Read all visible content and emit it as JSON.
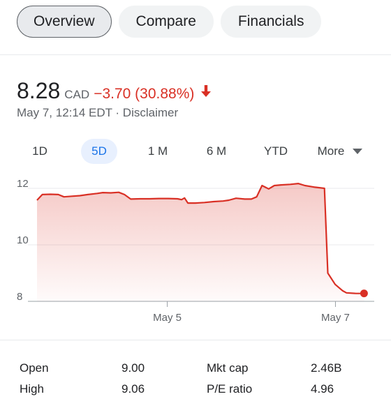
{
  "tabs": [
    {
      "label": "Overview",
      "active": true
    },
    {
      "label": "Compare",
      "active": false
    },
    {
      "label": "Financials",
      "active": false
    }
  ],
  "quote": {
    "price": "8.28",
    "currency": "CAD",
    "change": "−3.70 (30.88%)",
    "direction": "down",
    "timestamp": "May 7, 12:14 EDT · Disclaimer"
  },
  "ranges": [
    {
      "label": "1D",
      "active": false
    },
    {
      "label": "5D",
      "active": true
    },
    {
      "label": "1 M",
      "active": false
    },
    {
      "label": "6 M",
      "active": false
    },
    {
      "label": "YTD",
      "active": false
    },
    {
      "label": "More",
      "active": false
    }
  ],
  "colors": {
    "accent": "#1a73e8",
    "negative": "#d93025"
  },
  "chart_data": {
    "type": "area",
    "y_ticks": [
      12,
      10,
      8
    ],
    "ylim": [
      8,
      12.3
    ],
    "x_tick_labels": [
      {
        "label": "May 5",
        "t": 0.392
      },
      {
        "label": "May 7",
        "t": 0.898
      }
    ],
    "series": [
      {
        "values": [
          11.58,
          11.78,
          11.79,
          11.78,
          11.7,
          11.72,
          11.74,
          11.78,
          11.82,
          11.85,
          11.84,
          11.86,
          11.78,
          11.62,
          11.63,
          11.63,
          11.64,
          11.64,
          11.63,
          11.6,
          11.66,
          11.48,
          11.48,
          11.5,
          11.53,
          11.55,
          11.58,
          11.65,
          11.62,
          11.62,
          11.7,
          12.1,
          11.98,
          12.1,
          12.12,
          12.14,
          12.17,
          12.1,
          12.04,
          12.0,
          9.0,
          8.6,
          8.38,
          8.3,
          8.28,
          8.28
        ],
        "t": [
          0.0,
          0.016,
          0.04,
          0.064,
          0.081,
          0.105,
          0.129,
          0.153,
          0.181,
          0.198,
          0.222,
          0.246,
          0.263,
          0.282,
          0.31,
          0.339,
          0.367,
          0.395,
          0.423,
          0.435,
          0.444,
          0.454,
          0.476,
          0.504,
          0.532,
          0.56,
          0.577,
          0.599,
          0.625,
          0.645,
          0.661,
          0.677,
          0.697,
          0.714,
          0.734,
          0.762,
          0.786,
          0.806,
          0.837,
          0.865,
          0.875,
          0.897,
          0.919,
          0.931,
          0.96,
          0.984
        ]
      }
    ]
  },
  "stats": [
    {
      "label": "Open",
      "value": "9.00",
      "label2": "Mkt cap",
      "value2": "2.46B"
    },
    {
      "label": "High",
      "value": "9.06",
      "label2": "P/E ratio",
      "value2": "4.96"
    }
  ]
}
